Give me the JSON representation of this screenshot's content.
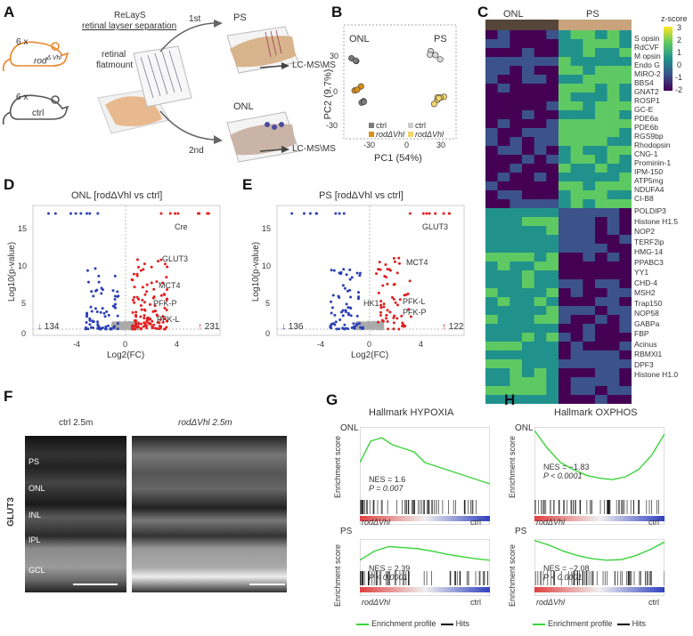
{
  "panels": {
    "A": {
      "letter": "A",
      "mouse_top": "6 x",
      "mouse_top_genotype": "rod",
      "mouse_top_sup": "Δ Vhl",
      "mouse_bottom": "6 x",
      "mouse_bottom_genotype": "ctrl",
      "method_title": "ReLayS",
      "method_subtitle": "retinal layser separation",
      "flatmount_label_1": "retinal",
      "flatmount_label_2": "flatmount",
      "step1": "1st",
      "step2": "2nd",
      "ps_label": "PS",
      "onl_label": "ONL",
      "lcms_1": "LC-MS\\MS",
      "lcms_2": "LC-MS\\MS"
    },
    "B": {
      "letter": "B",
      "group_onl": "ONL",
      "group_ps": "PS",
      "xlabel": "PC1 (54%)",
      "ylabel": "PC2 (9.7%)",
      "xticks": [
        "-30",
        "0",
        "30"
      ],
      "yticks": [
        "30",
        "0",
        "-30"
      ],
      "legend": [
        "ctrl",
        "rodΔVhl",
        "ctrl",
        "rodΔVhl"
      ],
      "colors": {
        "onl_ctrl": "#7a7a7a",
        "onl_rod": "#d9901a",
        "ps_ctrl": "#d8d8d8",
        "ps_rod": "#f2d56b"
      }
    },
    "C": {
      "letter": "C",
      "col_onl": "ONL",
      "col_ps": "PS",
      "legend_title": "z-score",
      "legend_ticks": [
        "3",
        "2",
        "1",
        "0",
        "-1",
        "-2"
      ],
      "genes_up": [
        "S opsin",
        "RdCVF",
        "M opsin",
        "Endo G",
        "MIRO-2",
        "BBS4",
        "GNAT2",
        "ROSP1",
        "GC-E",
        "PDE6a",
        "PDE6b",
        "RGS9bp",
        "Rhodopsin",
        "CNG-1",
        "Prominin-1",
        "IPM-150",
        "ATP5mg",
        "NDUFA4",
        "CI-B8"
      ],
      "genes_down": [
        "POLDIP3",
        "Histone H1.5",
        "NOP2",
        "TERF2ip",
        "HMG-14",
        "PPABC3",
        "YY1",
        "CHD-4",
        "MSH2",
        "Trap150",
        "NOP58",
        "GABPa",
        "FBP",
        "Acinus",
        "RBMXl1",
        "DPF3",
        "Histone H1.0"
      ]
    },
    "D": {
      "letter": "D",
      "title": "ONL [rodΔVhl vs ctrl]",
      "xlabel": "Log2(FC)",
      "ylabel": "Log10(p-value)",
      "count_down": "134",
      "count_up": "231",
      "genes": [
        "Cre",
        "GLUT3",
        "MCT4",
        "PFK-P",
        "PFK-L"
      ],
      "xticks": [
        "-4",
        "0",
        "4"
      ],
      "yticks": [
        "15",
        "10",
        "5",
        "0"
      ]
    },
    "E": {
      "letter": "E",
      "title": "PS [rodΔVhl vs ctrl]",
      "xlabel": "Log2(FC)",
      "ylabel": "Log10(p-value)",
      "count_down": "136",
      "count_up": "122",
      "genes": [
        "GLUT3",
        "MCT4",
        "HK1",
        "PFK-L",
        "PFK-P"
      ],
      "xticks": [
        "-4",
        "0",
        "4"
      ],
      "yticks": [
        "15",
        "10",
        "5",
        "0"
      ]
    },
    "F": {
      "letter": "F",
      "ctrl_label": "ctrl 2.5m",
      "rod_label": "rodΔVhl 2.5m",
      "stain": "GLUT3",
      "layers": [
        "PS",
        "ONL",
        "INL",
        "IPL",
        "GCL"
      ]
    },
    "G": {
      "letter": "G",
      "title": "Hallmark HYPOXIA",
      "top_group": "ONL",
      "top_nes": "NES = 1.6",
      "top_p": "P = 0.007",
      "bottom_group": "PS",
      "bottom_nes": "NES = 2.39",
      "bottom_p": "P < 0.0001",
      "ylabel": "Enrichment score",
      "left": "rodΔVhl",
      "right": "ctrl",
      "legend_profile": "Enrichment profile",
      "legend_hits": "Hits"
    },
    "H": {
      "letter": "H",
      "title": "Hallmark OXPHOS",
      "top_group": "ONL",
      "top_nes": "NES = −1.83",
      "top_p": "P < 0.0001",
      "bottom_group": "PS",
      "bottom_nes": "NES = −2.08",
      "bottom_p": "P < 0.0001",
      "ylabel": "Enrichment score",
      "left": "rodΔVhl",
      "right": "ctrl",
      "legend_profile": "Enrichment profile",
      "legend_hits": "Hits"
    }
  }
}
